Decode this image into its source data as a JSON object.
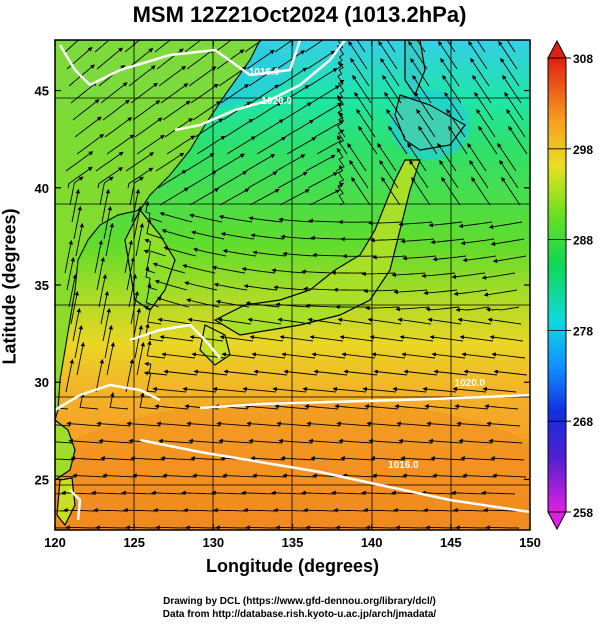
{
  "title": "MSM 12Z21Oct2024 (1013.2hPa)",
  "axes": {
    "xlabel": "Longitude (degrees)",
    "ylabel": "Latitude  (degrees)",
    "x_ticks": [
      "120",
      "125",
      "130",
      "135",
      "140",
      "145",
      "150"
    ],
    "y_ticks": [
      "25",
      "30",
      "35",
      "40",
      "45"
    ],
    "xlim": [
      120,
      150
    ],
    "ylim": [
      22.4,
      47.6
    ]
  },
  "colorbar": {
    "ticks": [
      "258",
      "268",
      "278",
      "288",
      "298",
      "308"
    ],
    "range": [
      258,
      308
    ],
    "colors": [
      "#e020e0",
      "#2020c0",
      "#1060ff",
      "#10c8f0",
      "#10e070",
      "#90e020",
      "#f0e020",
      "#f8a020",
      "#f05010",
      "#e01010"
    ]
  },
  "contours": [
    {
      "label": "1016.0",
      "lon": 133.2,
      "lat": 45.8
    },
    {
      "label": "1020.0",
      "lon": 134.0,
      "lat": 44.3
    },
    {
      "label": "1020.0",
      "lon": 146.2,
      "lat": 29.8
    },
    {
      "label": "1016.0",
      "lon": 142.0,
      "lat": 25.6
    }
  ],
  "credits": {
    "line1": "Drawing by DCL (https://www.gfd-dennou.org/library/dcl/)",
    "line2": "Data from http://database.rish.kyoto-u.ac.jp/arch/jmadata/"
  }
}
